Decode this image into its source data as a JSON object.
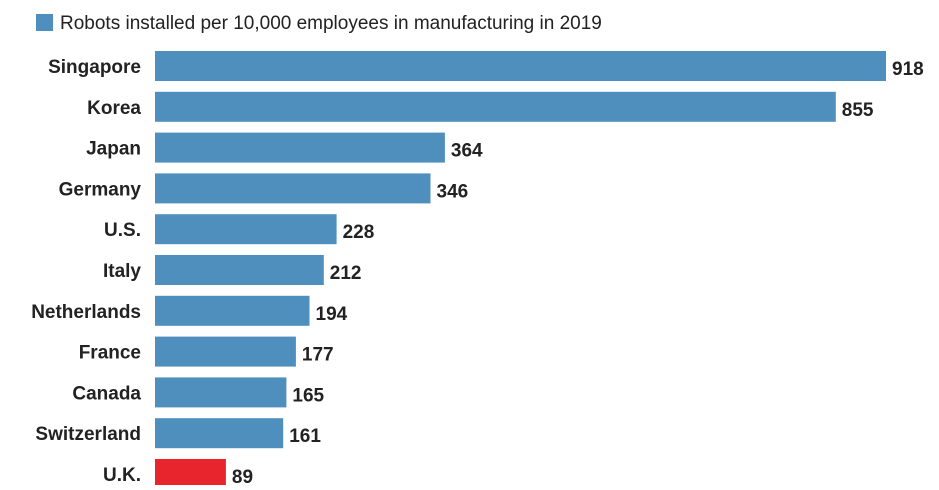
{
  "chart_data": {
    "type": "bar",
    "orientation": "horizontal",
    "categories": [
      "Singapore",
      "Korea",
      "Japan",
      "Germany",
      "U.S.",
      "Italy",
      "Netherlands",
      "France",
      "Canada",
      "Switzerland",
      "U.K."
    ],
    "series": [
      {
        "name": "Robots installed per 10,000 employees in manufacturing in 2019",
        "values": [
          918,
          855,
          364,
          346,
          228,
          212,
          194,
          177,
          165,
          161,
          89
        ]
      }
    ],
    "bar_colors": [
      "#4f8fbd",
      "#4f8fbd",
      "#4f8fbd",
      "#4f8fbd",
      "#4f8fbd",
      "#4f8fbd",
      "#4f8fbd",
      "#4f8fbd",
      "#4f8fbd",
      "#4f8fbd",
      "#e8242c"
    ],
    "default_color": "#4f8fbd",
    "highlight_color": "#e8242c",
    "highlight_category": "U.K.",
    "xlim": [
      0,
      918
    ],
    "legend_position": "top-left",
    "grid": false,
    "data_labels": true
  }
}
